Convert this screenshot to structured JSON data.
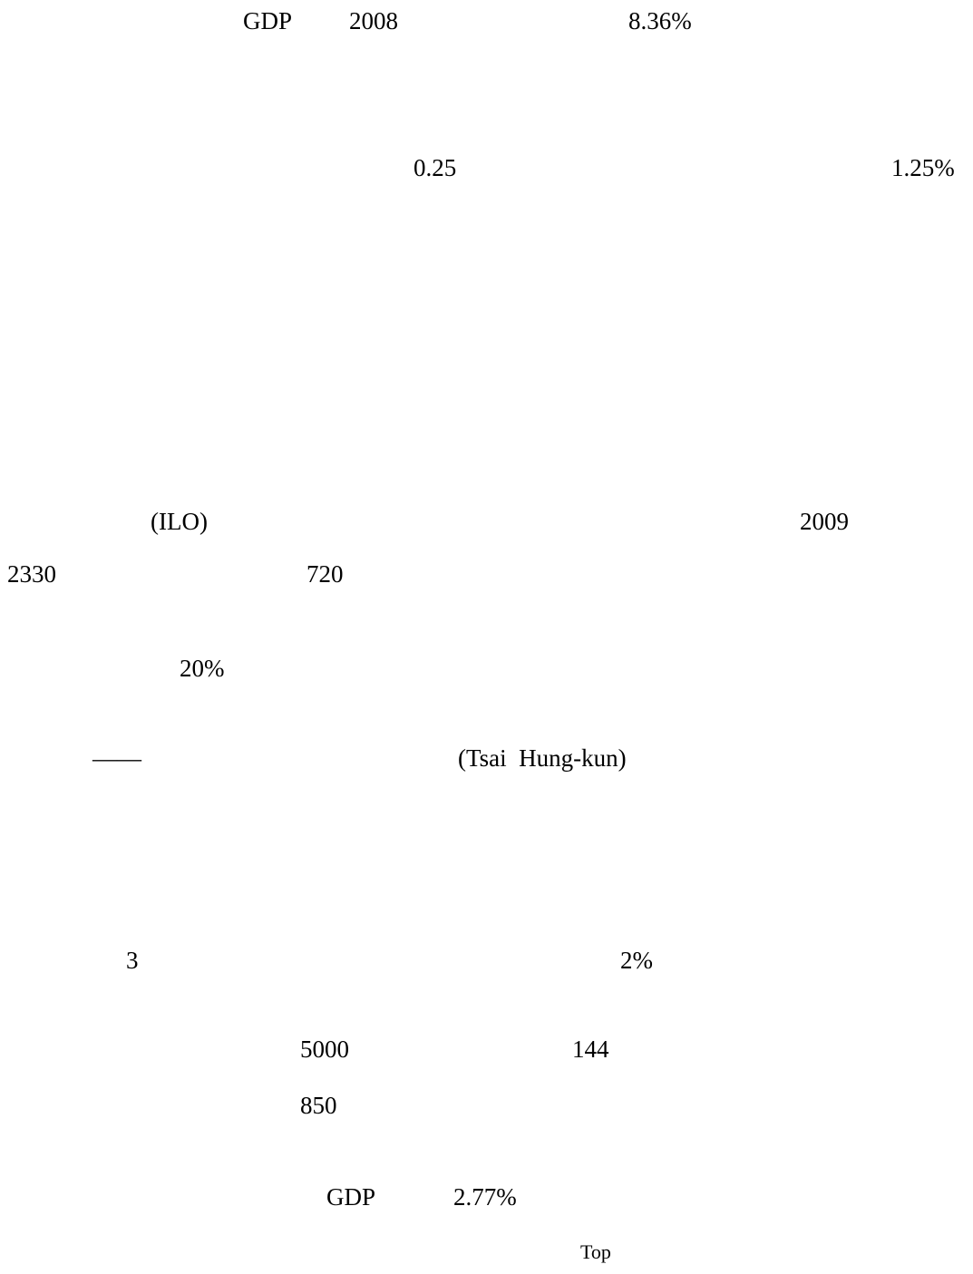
{
  "document": {
    "paragraphs": [
      {
        "name": "paragraph-gdp-2008",
        "fragments": [
          "GDP",
          "2008",
          "8.36%"
        ]
      },
      {
        "name": "paragraph-rate",
        "fragments": [
          "0.25",
          "1.25%"
        ]
      },
      {
        "name": "paragraph-ilo",
        "fragments": [
          "(ILO)",
          "2009",
          "2330",
          "720"
        ]
      },
      {
        "name": "paragraph-percent",
        "fragments": [
          "20%"
        ]
      },
      {
        "name": "paragraph-tsai",
        "fragments": [
          "——",
          "(Tsai  Hung-kun)"
        ]
      },
      {
        "name": "paragraph-three",
        "fragments": [
          "3",
          "2%",
          "5000",
          "144",
          "850"
        ]
      },
      {
        "name": "paragraph-gdp-share",
        "fragments": [
          "GDP",
          "2.77%"
        ]
      }
    ],
    "top_link": "Top"
  }
}
